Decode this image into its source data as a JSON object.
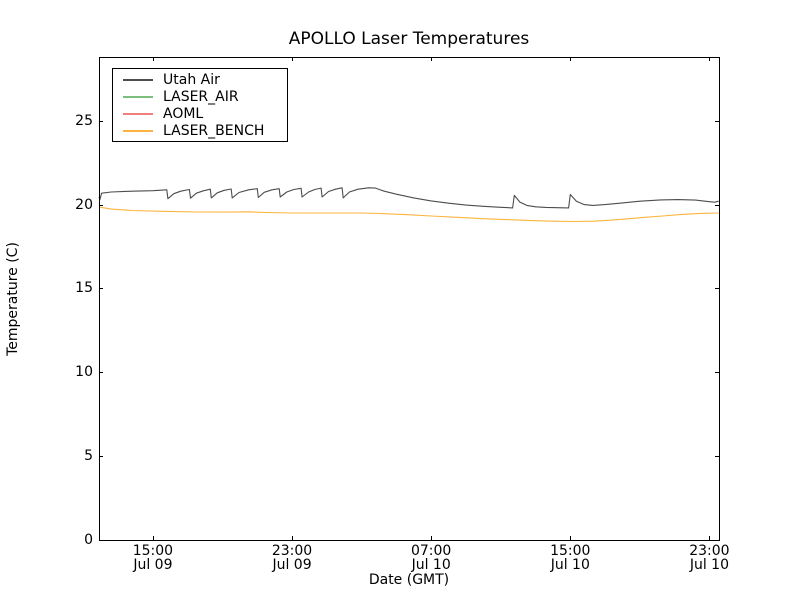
{
  "figure": {
    "background": "#ffffff",
    "frame_color": "#000000"
  },
  "chart_data": {
    "type": "line",
    "title": "APOLLO Laser Temperatures",
    "xlabel": "Date (GMT)",
    "ylabel": "Temperature (C)",
    "grid": false,
    "legend_position": "upper left",
    "x_unit": "hours since Jul 09 00:00 GMT",
    "xlim": [
      11.9,
      47.55
    ],
    "ylim": [
      0,
      28.8
    ],
    "yticks": [
      0,
      5,
      10,
      15,
      20,
      25
    ],
    "xticks": [
      {
        "pos": 15,
        "time": "15:00",
        "date": "Jul 09"
      },
      {
        "pos": 23,
        "time": "23:00",
        "date": "Jul 09"
      },
      {
        "pos": 31,
        "time": "07:00",
        "date": "Jul 10"
      },
      {
        "pos": 39,
        "time": "15:00",
        "date": "Jul 10"
      },
      {
        "pos": 47,
        "time": "23:00",
        "date": "Jul 10"
      }
    ],
    "series": [
      {
        "name": "Utah Air",
        "color": "#4d4d4d",
        "points": [
          [
            11.9,
            20.45
          ],
          [
            11.95,
            20.3
          ],
          [
            12.05,
            20.68
          ],
          [
            12.6,
            20.75
          ],
          [
            13.8,
            20.8
          ],
          [
            15.0,
            20.83
          ],
          [
            15.8,
            20.88
          ],
          [
            15.86,
            20.35
          ],
          [
            16.2,
            20.65
          ],
          [
            16.6,
            20.8
          ],
          [
            17.1,
            20.9
          ],
          [
            17.16,
            20.38
          ],
          [
            17.5,
            20.68
          ],
          [
            17.9,
            20.82
          ],
          [
            18.3,
            20.92
          ],
          [
            18.36,
            20.4
          ],
          [
            18.7,
            20.7
          ],
          [
            19.1,
            20.85
          ],
          [
            19.5,
            20.93
          ],
          [
            19.56,
            20.4
          ],
          [
            19.95,
            20.72
          ],
          [
            20.5,
            20.88
          ],
          [
            21.0,
            20.95
          ],
          [
            21.06,
            20.42
          ],
          [
            21.4,
            20.73
          ],
          [
            21.85,
            20.88
          ],
          [
            22.26,
            20.95
          ],
          [
            22.32,
            20.45
          ],
          [
            22.7,
            20.75
          ],
          [
            23.1,
            20.9
          ],
          [
            23.52,
            20.97
          ],
          [
            23.58,
            20.45
          ],
          [
            23.95,
            20.75
          ],
          [
            24.3,
            20.9
          ],
          [
            24.67,
            20.98
          ],
          [
            24.73,
            20.45
          ],
          [
            25.1,
            20.78
          ],
          [
            25.5,
            20.92
          ],
          [
            25.88,
            21.0
          ],
          [
            25.94,
            20.4
          ],
          [
            26.3,
            20.75
          ],
          [
            26.8,
            20.92
          ],
          [
            27.4,
            21.0
          ],
          [
            27.8,
            20.98
          ],
          [
            28.3,
            20.8
          ],
          [
            29.0,
            20.62
          ],
          [
            30.0,
            20.4
          ],
          [
            31.0,
            20.22
          ],
          [
            32.0,
            20.08
          ],
          [
            33.0,
            19.97
          ],
          [
            34.0,
            19.9
          ],
          [
            35.0,
            19.84
          ],
          [
            35.68,
            19.8
          ],
          [
            35.78,
            20.55
          ],
          [
            36.1,
            20.15
          ],
          [
            36.5,
            19.95
          ],
          [
            37.0,
            19.87
          ],
          [
            37.6,
            19.83
          ],
          [
            38.9,
            19.8
          ],
          [
            39.0,
            20.6
          ],
          [
            39.35,
            20.2
          ],
          [
            39.8,
            20.0
          ],
          [
            40.3,
            19.95
          ],
          [
            41.0,
            20.0
          ],
          [
            42.0,
            20.1
          ],
          [
            43.0,
            20.2
          ],
          [
            44.2,
            20.28
          ],
          [
            45.2,
            20.3
          ],
          [
            46.2,
            20.27
          ],
          [
            47.0,
            20.17
          ],
          [
            47.3,
            20.14
          ],
          [
            47.53,
            20.2
          ]
        ]
      },
      {
        "name": "LASER_AIR",
        "color": "#7cbf7c",
        "points": []
      },
      {
        "name": "AOML",
        "color": "#f08080",
        "points": []
      },
      {
        "name": "LASER_BENCH",
        "color": "#fcb43e",
        "points": [
          [
            11.9,
            19.85
          ],
          [
            12.6,
            19.73
          ],
          [
            13.8,
            19.65
          ],
          [
            15.5,
            19.6
          ],
          [
            17.5,
            19.56
          ],
          [
            19.5,
            19.55
          ],
          [
            20.5,
            19.57
          ],
          [
            21.5,
            19.53
          ],
          [
            23.0,
            19.5
          ],
          [
            25.0,
            19.5
          ],
          [
            27.0,
            19.5
          ],
          [
            28.0,
            19.47
          ],
          [
            29.5,
            19.4
          ],
          [
            31.0,
            19.32
          ],
          [
            32.5,
            19.24
          ],
          [
            34.0,
            19.16
          ],
          [
            35.5,
            19.1
          ],
          [
            37.0,
            19.04
          ],
          [
            38.0,
            19.01
          ],
          [
            39.3,
            18.99
          ],
          [
            40.3,
            19.01
          ],
          [
            41.3,
            19.07
          ],
          [
            42.3,
            19.15
          ],
          [
            43.3,
            19.24
          ],
          [
            44.3,
            19.32
          ],
          [
            45.3,
            19.4
          ],
          [
            46.3,
            19.46
          ],
          [
            47.53,
            19.5
          ]
        ]
      }
    ]
  }
}
